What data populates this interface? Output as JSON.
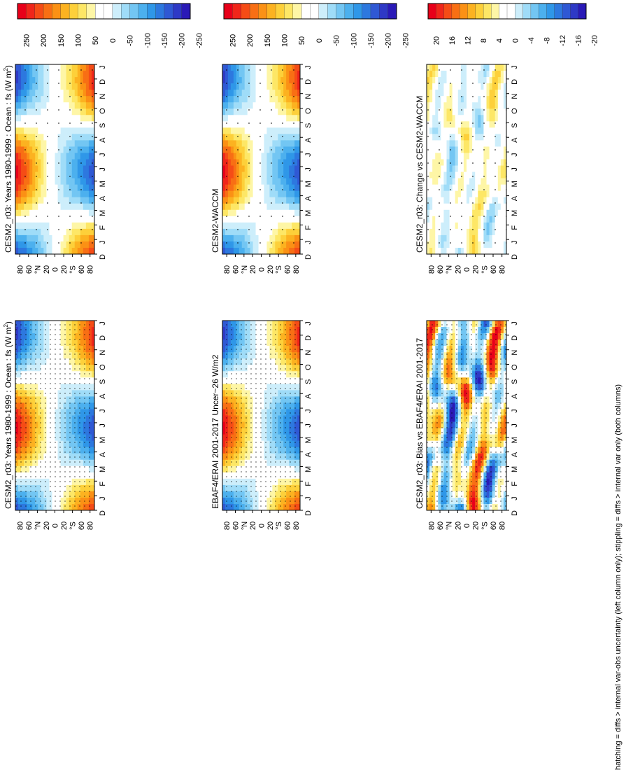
{
  "figure_caption": "hatching = diffs > internal var-obs uncertainty (left column only); stippling = diffs > internal var only (both columns)",
  "colors": {
    "diverging_large": [
      "#e8001a",
      "#f0261a",
      "#f54c16",
      "#f86f14",
      "#fb9115",
      "#fcb220",
      "#fdd03a",
      "#fde766",
      "#fef6a6",
      "#ffffff",
      "#ffffff",
      "#cdeefb",
      "#9fdcf8",
      "#73c6f3",
      "#4cb0ee",
      "#2f97e8",
      "#2d78df",
      "#2f58d4",
      "#2e39c6",
      "#2a1ab7"
    ],
    "negative_fill": "#5ab5ef",
    "positive_fill": "#fbb431"
  },
  "chart_data": [
    {
      "type": "heatmap",
      "panel": "model-annual-cycle-left",
      "title": "CESM2_r03: Years 1980-1999 : Ocean : fs (W m",
      "title_superscript": "2",
      "title_end": ")",
      "x_ticks": [
        "D",
        "J",
        "F",
        "M",
        "A",
        "M",
        "J",
        "J",
        "A",
        "S",
        "O",
        "N",
        "D",
        "J"
      ],
      "y_ticks": [
        "80",
        "60",
        "°N",
        "20",
        "0",
        "20",
        "°S",
        "60",
        "80"
      ],
      "colorbar_labels": [
        "250",
        "200",
        "150",
        "100",
        "50",
        "0",
        "-50",
        "-100",
        "-150",
        "-200",
        "-250"
      ],
      "stippling": true,
      "hatching": true
    },
    {
      "type": "heatmap",
      "panel": "model-annual-cycle-right",
      "title": "CESM2_r03: Years 1980-1999 : Ocean : fs (W m",
      "title_superscript": "2",
      "title_end": ")",
      "x_ticks": [
        "D",
        "J",
        "F",
        "M",
        "A",
        "M",
        "J",
        "J",
        "A",
        "S",
        "O",
        "N",
        "D",
        "J"
      ],
      "y_ticks": [
        "80",
        "60",
        "°N",
        "20",
        "0",
        "20",
        "°S",
        "60",
        "80"
      ],
      "colorbar_labels": [
        "250",
        "200",
        "150",
        "100",
        "50",
        "0",
        "-50",
        "-100",
        "-150",
        "-200",
        "-250"
      ],
      "stippling": true,
      "hatching": false
    },
    {
      "type": "heatmap",
      "panel": "obs-reference",
      "title": "EBAF4/ERAI 2001-2017 Uncer~26 W/m2",
      "x_ticks": [
        "D",
        "J",
        "F",
        "M",
        "A",
        "M",
        "J",
        "J",
        "A",
        "S",
        "O",
        "N",
        "D",
        "J"
      ],
      "y_ticks": [
        "80",
        "60",
        "°N",
        "20",
        "0",
        "20",
        "°S",
        "60",
        "80"
      ],
      "colorbar_labels": [
        "250",
        "200",
        "150",
        "100",
        "50",
        "0",
        "-50",
        "-100",
        "-150",
        "-200",
        "-250"
      ],
      "stippling": true,
      "hatching": true
    },
    {
      "type": "heatmap",
      "panel": "comparison-model",
      "title": "CESM2-WACCM",
      "x_ticks": [
        "D",
        "J",
        "F",
        "M",
        "A",
        "M",
        "J",
        "J",
        "A",
        "S",
        "O",
        "N",
        "D",
        "J"
      ],
      "y_ticks": [
        "80",
        "60",
        "°N",
        "20",
        "0",
        "20",
        "°S",
        "60",
        "80"
      ],
      "colorbar_labels": [
        "250",
        "200",
        "150",
        "100",
        "50",
        "0",
        "-50",
        "-100",
        "-150",
        "-200",
        "-250"
      ],
      "stippling": true,
      "hatching": false
    },
    {
      "type": "heatmap",
      "panel": "bias-vs-obs",
      "title": "CESM2_r03: Bias vs EBAF4/ERAI 2001-2017",
      "x_ticks": [
        "D",
        "J",
        "F",
        "M",
        "A",
        "M",
        "J",
        "J",
        "A",
        "S",
        "O",
        "N",
        "D",
        "J"
      ],
      "y_ticks": [
        "80",
        "60",
        "°N",
        "20",
        "0",
        "20",
        "°S",
        "60",
        "80"
      ],
      "colorbar_labels": [
        "20",
        "16",
        "12",
        "8",
        "4",
        "0",
        "-4",
        "-8",
        "-12",
        "-16",
        "-20"
      ],
      "stippling": true,
      "hatching": true
    },
    {
      "type": "heatmap",
      "panel": "change-vs-model",
      "title": "CESM2_r03: Change vs CESM2-WACCM",
      "x_ticks": [
        "D",
        "J",
        "F",
        "M",
        "A",
        "M",
        "J",
        "J",
        "A",
        "S",
        "O",
        "N",
        "D",
        "J"
      ],
      "y_ticks": [
        "80",
        "60",
        "°N",
        "20",
        "0",
        "20",
        "°S",
        "60",
        "80"
      ],
      "colorbar_labels": [
        "20",
        "16",
        "12",
        "8",
        "4",
        "0",
        "-4",
        "-8",
        "-12",
        "-16",
        "-20"
      ],
      "stippling": true,
      "hatching": false
    }
  ]
}
